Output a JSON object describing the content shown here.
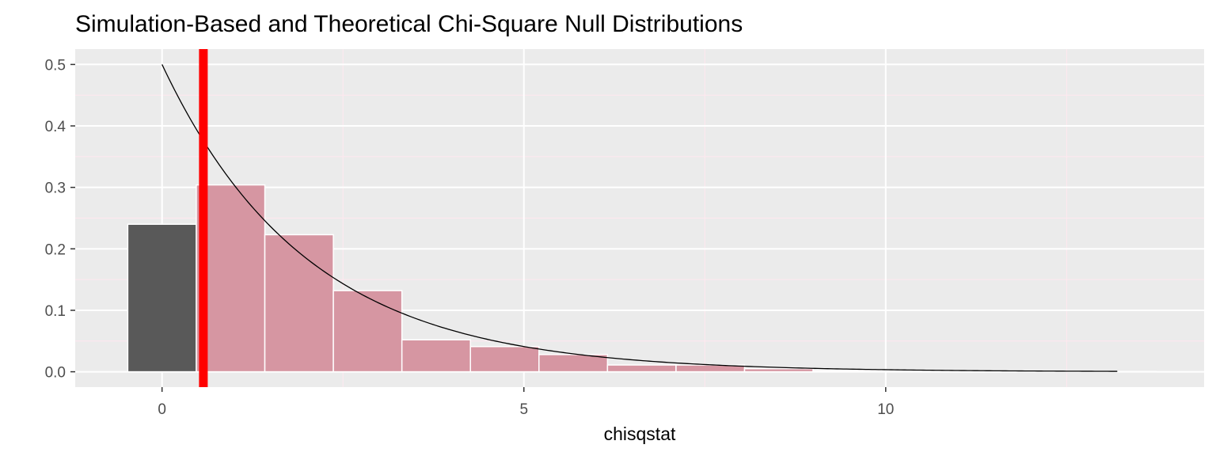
{
  "chart_data": {
    "type": "bar",
    "title": "Simulation-Based and Theoretical Chi-Square Null Distributions",
    "xlabel": "chisqstat",
    "ylabel": "",
    "xlim": [
      -1.2,
      14.4
    ],
    "ylim": [
      -0.025,
      0.525
    ],
    "x_ticks": [
      0,
      5,
      10
    ],
    "y_ticks": [
      0.0,
      0.1,
      0.2,
      0.3,
      0.4,
      0.5
    ],
    "y_tick_labels": [
      "0.0",
      "0.1",
      "0.2",
      "0.3",
      "0.4",
      "0.5"
    ],
    "grid": true,
    "legend": "none",
    "histogram": {
      "bin_width": 0.947,
      "bins": [
        {
          "center": 0.0,
          "density": 0.24,
          "shaded": false
        },
        {
          "center": 0.947,
          "density": 0.304,
          "shaded": true
        },
        {
          "center": 1.894,
          "density": 0.223,
          "shaded": true
        },
        {
          "center": 2.841,
          "density": 0.132,
          "shaded": true
        },
        {
          "center": 3.788,
          "density": 0.052,
          "shaded": true
        },
        {
          "center": 4.735,
          "density": 0.041,
          "shaded": true
        },
        {
          "center": 5.682,
          "density": 0.028,
          "shaded": true
        },
        {
          "center": 6.629,
          "density": 0.011,
          "shaded": true
        },
        {
          "center": 7.576,
          "density": 0.011,
          "shaded": true
        },
        {
          "center": 8.523,
          "density": 0.005,
          "shaded": true
        },
        {
          "center": 9.47,
          "density": 0.002,
          "shaded": true
        },
        {
          "center": 10.417,
          "density": 0.001,
          "shaded": true
        },
        {
          "center": 11.364,
          "density": 0.001,
          "shaded": true
        },
        {
          "center": 12.311,
          "density": 0.0005,
          "shaded": true
        },
        {
          "center": 13.258,
          "density": 0.0005,
          "shaded": true
        }
      ]
    },
    "theoretical_curve": {
      "distribution": "chi-square",
      "df": 2,
      "x_range": [
        0,
        13.2
      ]
    },
    "observed_statistic": 0.571,
    "colors": {
      "panel_background": "#ebebeb",
      "grid_major": "#ffffff",
      "grid_minor": "#ffe8ef",
      "bar_unshaded": "#595959",
      "bar_shaded": "#d696a2",
      "bar_outline": "#ffffff",
      "curve": "#000000",
      "observed_line": "#ff0000"
    }
  }
}
